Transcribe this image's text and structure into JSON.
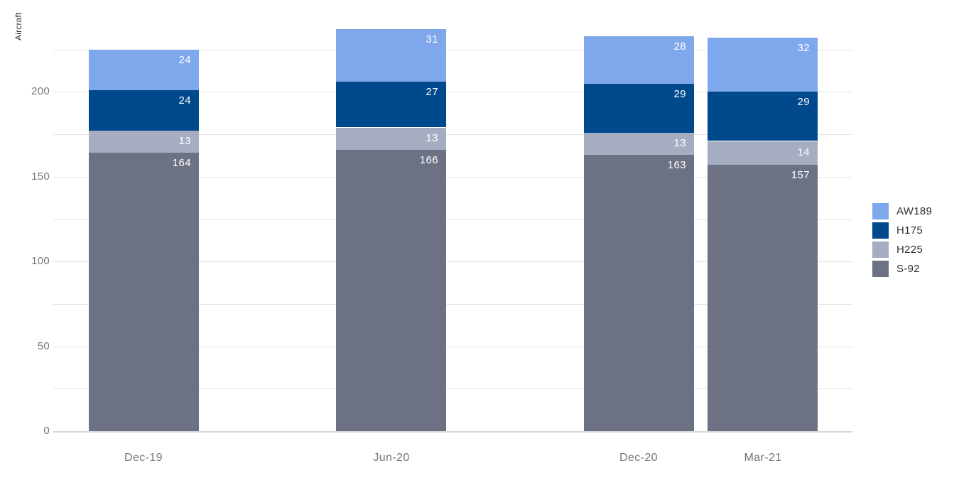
{
  "chart_data": {
    "type": "bar",
    "stacked": true,
    "title": "",
    "xlabel": "",
    "ylabel": "Aircraft",
    "categories": [
      "Dec-19",
      "Jun-20",
      "Dec-20",
      "Mar-21"
    ],
    "x_month_offsets": [
      0,
      6,
      12,
      15
    ],
    "series": [
      {
        "name": "S-92",
        "color": "#6C7284",
        "values": [
          164,
          166,
          163,
          157
        ]
      },
      {
        "name": "H225",
        "color": "#A7ADC0",
        "values": [
          13,
          13,
          13,
          14
        ]
      },
      {
        "name": "H175",
        "color": "#00498C",
        "values": [
          24,
          27,
          29,
          29
        ]
      },
      {
        "name": "AW189",
        "color": "#7FA8EC",
        "values": [
          24,
          31,
          28,
          32
        ]
      }
    ],
    "totals": [
      225,
      237,
      233,
      232
    ],
    "y_ticks": [
      0,
      50,
      100,
      150,
      200
    ],
    "gridline_step": 25,
    "gridline_max": 225,
    "ylim": [
      0,
      240
    ],
    "grid": true,
    "legend": {
      "position": "right",
      "order": [
        "AW189",
        "H175",
        "H225",
        "S-92"
      ]
    },
    "colors": {
      "gridline": "#E3E3E3",
      "baseline": "#D9D9D9",
      "tick_label": "#757575",
      "legend_label": "#303030",
      "bar_value_label": "#FFFFFF"
    }
  }
}
